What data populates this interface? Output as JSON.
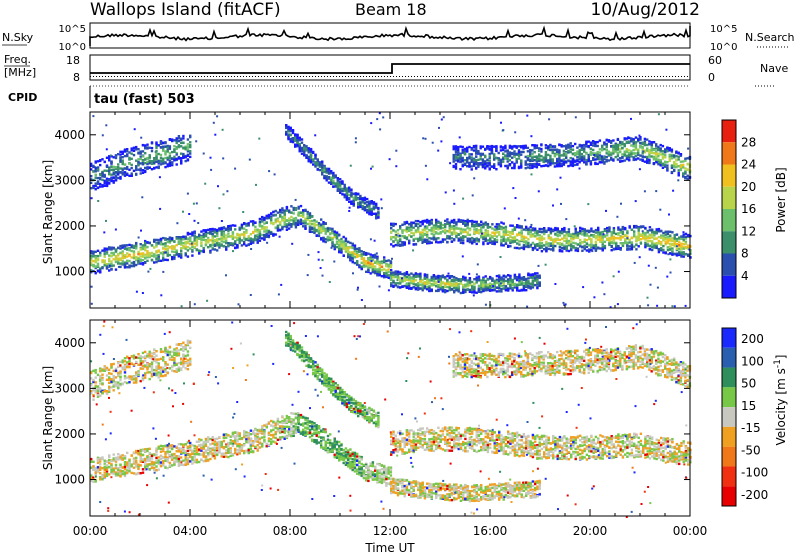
{
  "header": {
    "station": "Wallops Island (fitACF)",
    "beam": "Beam 18",
    "date": "10/Aug/2012"
  },
  "top_panels": {
    "nsky": {
      "label": "N.Sky",
      "tick_top": "10^5",
      "tick_bottom": "10^0",
      "right_tick_top": "10^5",
      "right_tick_bottom": "10^0",
      "right_label": "N.Search"
    },
    "freq": {
      "label_line1": "Freq.",
      "label_line2": "[MHz]",
      "tick_top": "18",
      "tick_bottom": "8",
      "right_tick_top": "60",
      "right_tick_bottom": "0",
      "right_label": "Nave"
    },
    "cpid": {
      "label": "CPID",
      "value": "tau (fast) 503"
    }
  },
  "time_axis": {
    "title": "Time UT",
    "ticks": [
      "00:00",
      "04:00",
      "08:00",
      "12:00",
      "16:00",
      "20:00",
      "00:00"
    ]
  },
  "chart_data": [
    {
      "type": "heatmap",
      "panel": "power",
      "title": "",
      "xlabel": "Time UT",
      "ylabel": "Slant Range [km]",
      "ylim": [
        200,
        4500
      ],
      "y_ticks": [
        "1000",
        "2000",
        "3000",
        "4000"
      ],
      "colorbar": {
        "title": "Power [dB]",
        "min": 0,
        "max": 32,
        "tick_labels": [
          "4",
          "8",
          "12",
          "16",
          "20",
          "24",
          "28"
        ],
        "colors": [
          "#1a1aff",
          "#2a4faf",
          "#3b8f6a",
          "#6dc06b",
          "#b8d44a",
          "#f0c020",
          "#f07818",
          "#e82010"
        ]
      },
      "bands": [
        {
          "x": [
            0.0,
            1.5,
            3.0,
            5.0,
            6.5,
            7.5,
            8.3
          ],
          "y": [
            1200,
            1350,
            1500,
            1700,
            1850,
            2100,
            2250
          ],
          "width_km": 260,
          "level": [
            20,
            24,
            22,
            18,
            20,
            18,
            16
          ]
        },
        {
          "x": [
            8.3,
            9.0,
            10.0,
            11.0,
            12.0
          ],
          "y": [
            2250,
            2000,
            1600,
            1200,
            1050
          ],
          "width_km": 220,
          "level": [
            16,
            18,
            20,
            24,
            22
          ]
        },
        {
          "x": [
            0.0,
            1.5,
            3.0,
            4.0
          ],
          "y": [
            3050,
            3400,
            3600,
            3750
          ],
          "width_km": 320,
          "level": [
            10,
            12,
            14,
            12
          ]
        },
        {
          "x": [
            7.8,
            8.5,
            9.5,
            10.5,
            11.5
          ],
          "y": [
            4100,
            3700,
            3100,
            2600,
            2300
          ],
          "width_km": 160,
          "level": [
            8,
            10,
            12,
            12,
            10
          ]
        },
        {
          "x": [
            12.0,
            14.0,
            16.0,
            18.0,
            20.0,
            22.0,
            24.0
          ],
          "y": [
            1800,
            1900,
            1850,
            1700,
            1700,
            1750,
            1550
          ],
          "width_km": 260,
          "level": [
            20,
            18,
            20,
            22,
            20,
            22,
            24
          ]
        },
        {
          "x": [
            12.0,
            13.5,
            15.0,
            17.0,
            18.0
          ],
          "y": [
            850,
            750,
            700,
            750,
            800
          ],
          "width_km": 180,
          "level": [
            18,
            20,
            18,
            14,
            12
          ]
        },
        {
          "x": [
            14.5,
            16.5,
            18.5,
            20.0,
            22.0,
            24.0
          ],
          "y": [
            3500,
            3500,
            3550,
            3600,
            3700,
            3250
          ],
          "width_km": 260,
          "level": [
            8,
            10,
            12,
            12,
            18,
            22
          ]
        }
      ]
    },
    {
      "type": "heatmap",
      "panel": "velocity",
      "title": "",
      "xlabel": "Time UT",
      "ylabel": "Slant Range [km]",
      "ylim": [
        200,
        4500
      ],
      "y_ticks": [
        "1000",
        "2000",
        "3000",
        "4000"
      ],
      "colorbar": {
        "title": "Velocity [m s^-1]",
        "min": -250,
        "max": 250,
        "tick_labels": [
          "200",
          "100",
          "50",
          "15",
          "-15",
          "-50",
          "-100",
          "-200"
        ],
        "colors": [
          "#1a2aff",
          "#2a5fb0",
          "#2e8f5c",
          "#78c848",
          "#c8c8c0",
          "#f0a020",
          "#f07818",
          "#f03010",
          "#e80000"
        ]
      },
      "bands": [
        {
          "x": [
            0.0,
            1.5,
            3.0,
            5.0,
            6.5,
            7.5,
            8.3
          ],
          "y": [
            1200,
            1350,
            1500,
            1700,
            1850,
            2100,
            2250
          ],
          "width_km": 260,
          "level": [
            0,
            0,
            0,
            0,
            0,
            0,
            20
          ]
        },
        {
          "x": [
            8.3,
            9.0,
            10.0,
            11.0,
            12.0
          ],
          "y": [
            2250,
            2000,
            1600,
            1200,
            1050
          ],
          "width_km": 220,
          "level": [
            30,
            30,
            30,
            20,
            10
          ]
        },
        {
          "x": [
            0.0,
            1.5,
            3.0,
            4.0
          ],
          "y": [
            3050,
            3400,
            3600,
            3750
          ],
          "width_km": 320,
          "level": [
            0,
            0,
            0,
            0
          ]
        },
        {
          "x": [
            7.8,
            8.5,
            9.5,
            10.5,
            11.5
          ],
          "y": [
            4100,
            3700,
            3100,
            2600,
            2300
          ],
          "width_km": 160,
          "level": [
            30,
            30,
            30,
            30,
            20
          ]
        },
        {
          "x": [
            12.0,
            14.0,
            16.0,
            18.0,
            20.0,
            22.0,
            24.0
          ],
          "y": [
            1800,
            1900,
            1850,
            1700,
            1700,
            1750,
            1550
          ],
          "width_km": 260,
          "level": [
            0,
            0,
            0,
            0,
            0,
            0,
            0
          ]
        },
        {
          "x": [
            12.0,
            13.5,
            15.0,
            17.0,
            18.0
          ],
          "y": [
            850,
            750,
            700,
            750,
            800
          ],
          "width_km": 180,
          "level": [
            0,
            0,
            0,
            0,
            0
          ]
        },
        {
          "x": [
            14.5,
            16.5,
            18.5,
            20.0,
            22.0,
            24.0
          ],
          "y": [
            3500,
            3500,
            3550,
            3600,
            3700,
            3250
          ],
          "width_km": 260,
          "level": [
            0,
            0,
            0,
            0,
            0,
            0
          ]
        }
      ]
    }
  ]
}
